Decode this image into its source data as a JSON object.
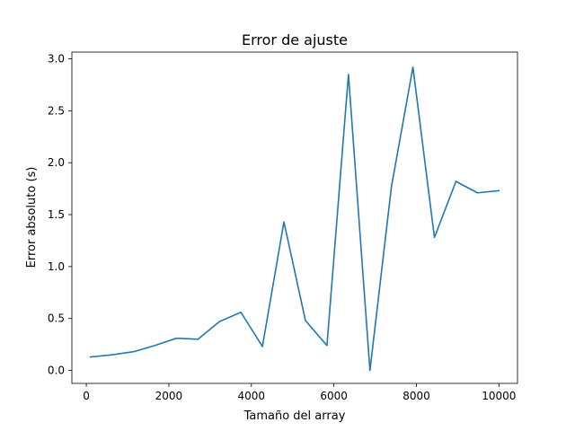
{
  "chart_data": {
    "type": "line",
    "title": "Error de ajuste",
    "xlabel": "Tamaño del array",
    "ylabel": "Error absoluto (s)",
    "xlim": [
      -350,
      10450
    ],
    "ylim": [
      -0.125,
      3.065
    ],
    "x_ticks": [
      0,
      2000,
      4000,
      6000,
      8000,
      10000
    ],
    "y_ticks": [
      0.0,
      0.5,
      1.0,
      1.5,
      2.0,
      2.5,
      3.0
    ],
    "x_tick_labels": [
      "0",
      "2000",
      "4000",
      "6000",
      "8000",
      "10000"
    ],
    "y_tick_labels": [
      "0.0",
      "0.5",
      "1.0",
      "1.5",
      "2.0",
      "2.5",
      "3.0"
    ],
    "grid": false,
    "series": [
      {
        "color": "#1f77b4",
        "x": [
          100,
          621,
          1142,
          1663,
          2184,
          2705,
          3226,
          3747,
          4268,
          4789,
          5311,
          5832,
          6353,
          6874,
          7395,
          7916,
          8437,
          8958,
          9479,
          10000
        ],
        "y": [
          0.13,
          0.15,
          0.18,
          0.24,
          0.31,
          0.3,
          0.47,
          0.56,
          0.23,
          1.43,
          0.48,
          0.24,
          2.85,
          0.0,
          1.77,
          2.92,
          1.28,
          1.82,
          1.71,
          1.73
        ]
      }
    ]
  }
}
